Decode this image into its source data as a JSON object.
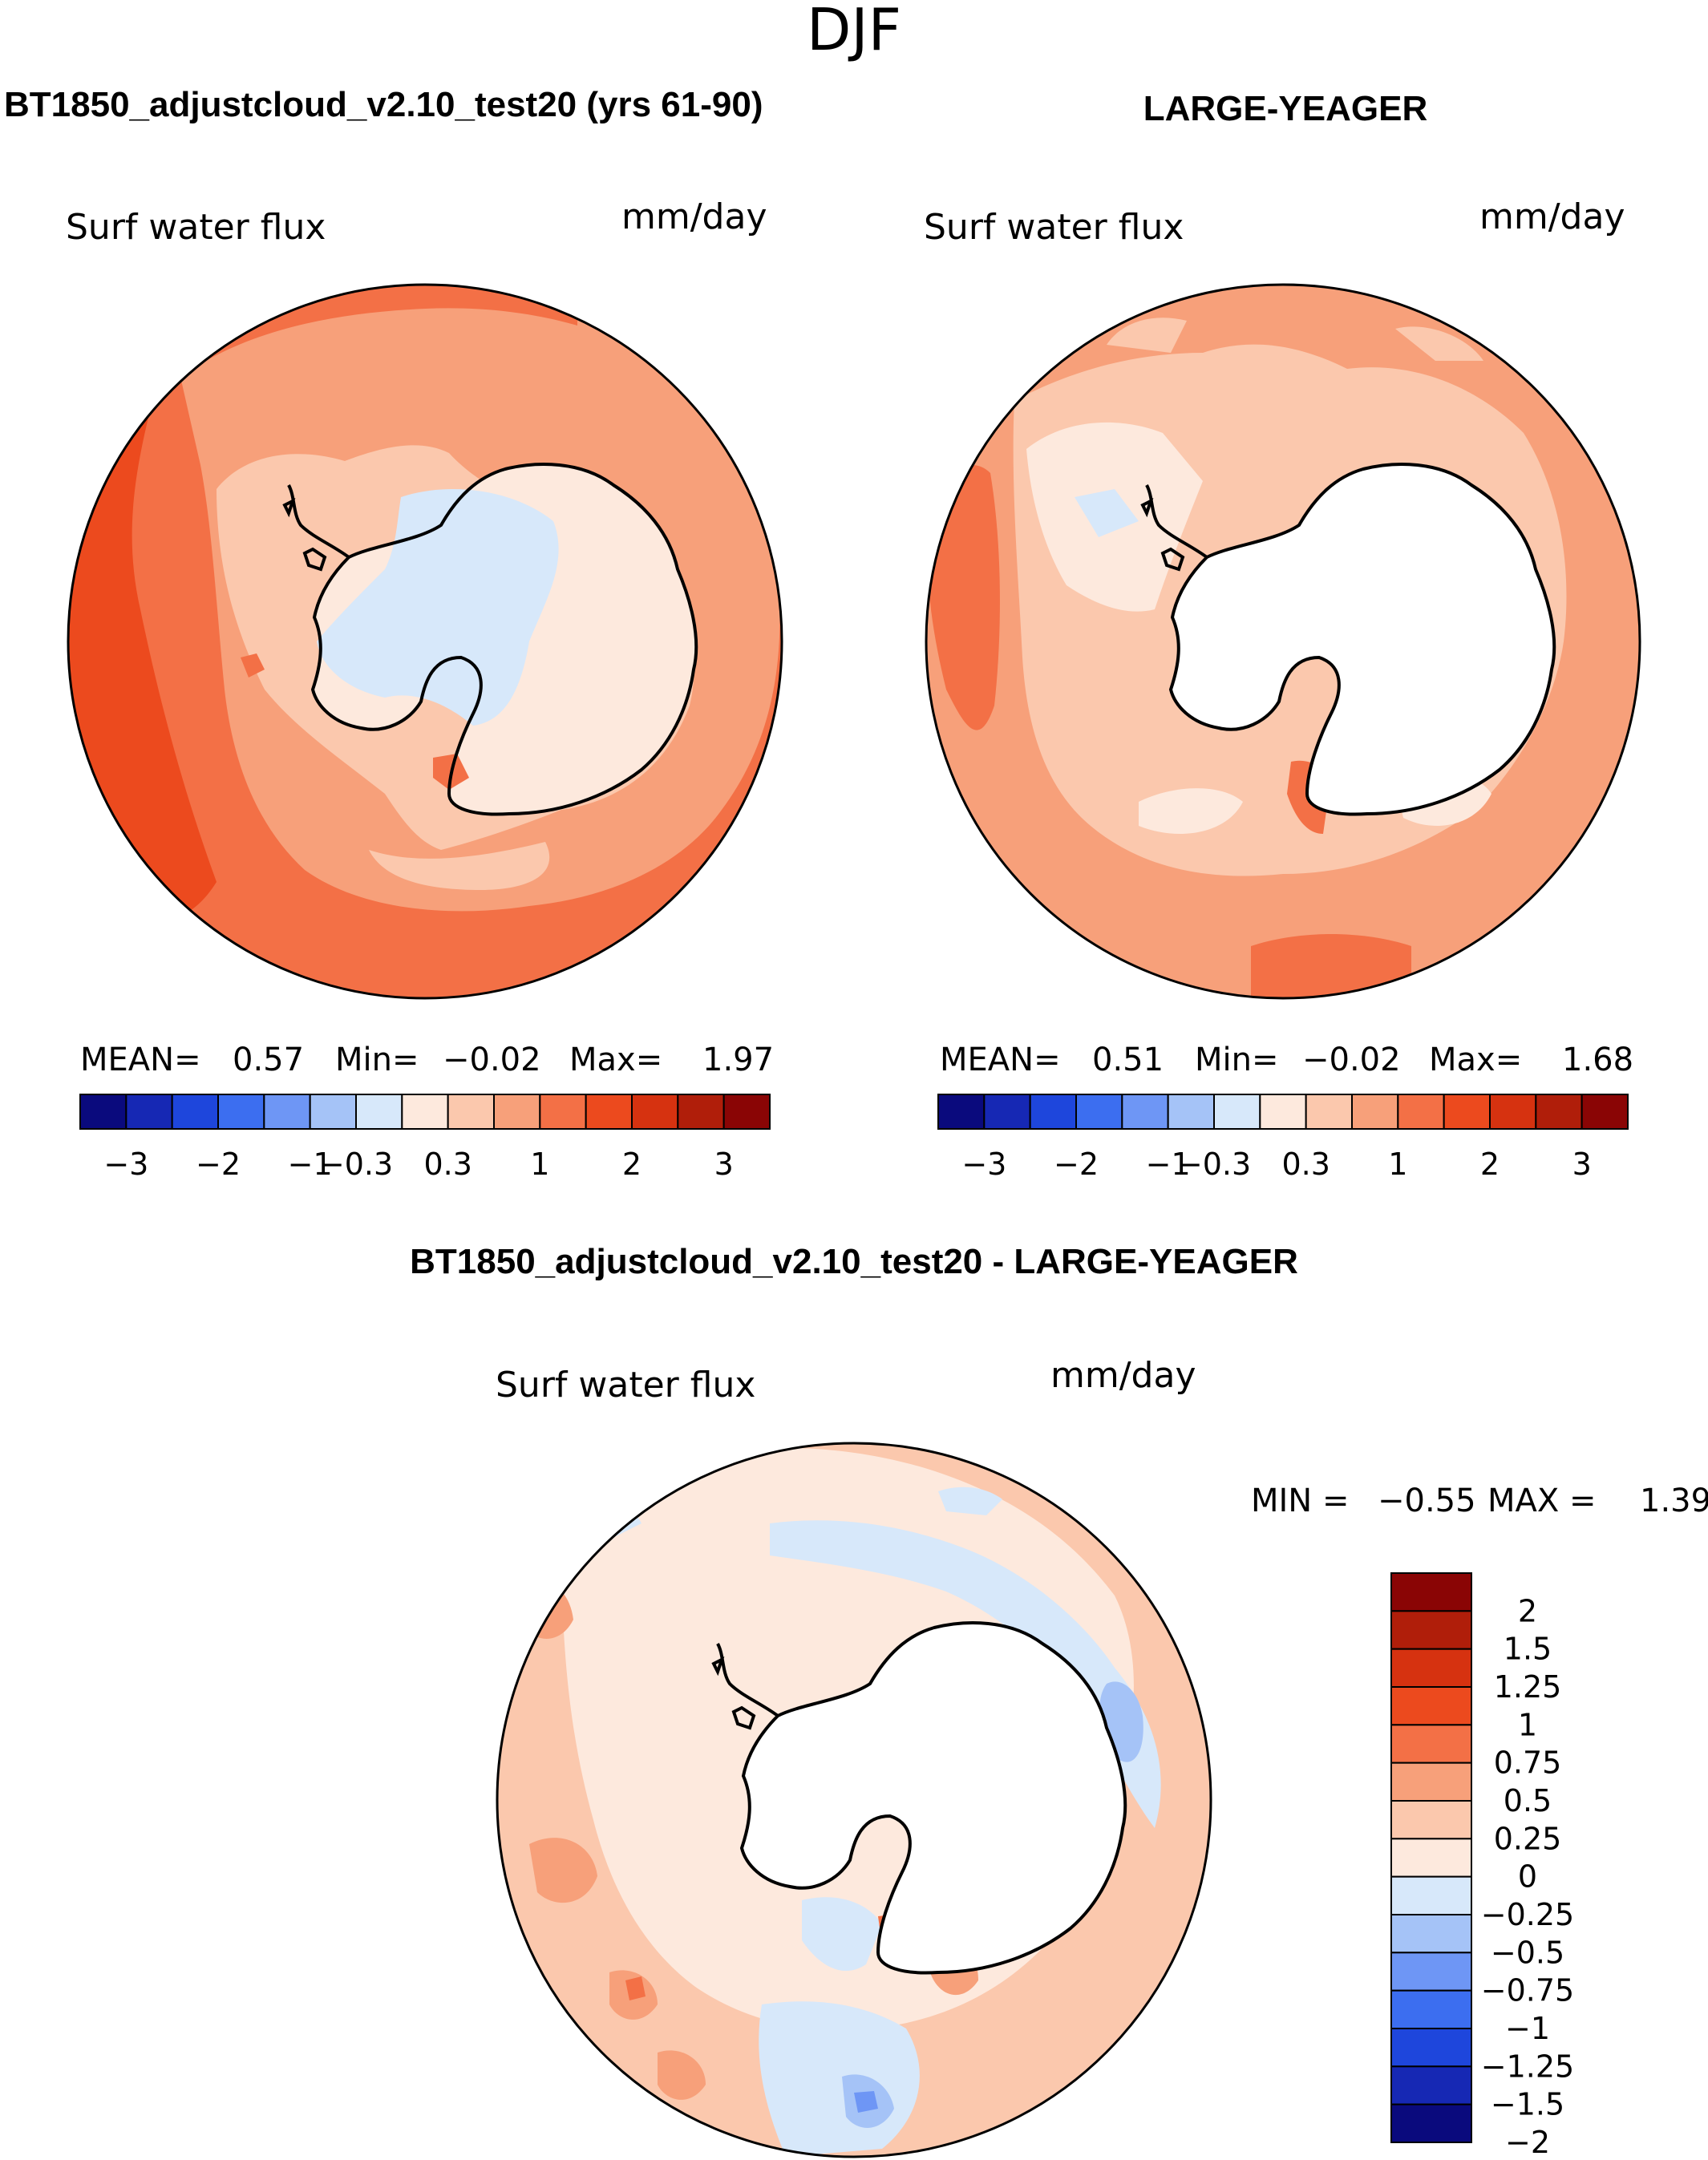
{
  "season": "DJF",
  "panels": [
    {
      "title": "BT1850_adjustcloud_v2.10_test20 (yrs 61-90)",
      "variable": "Surf  water  flux",
      "units": "mm/day",
      "stats": {
        "mean_label": "MEAN=",
        "mean": "0.57",
        "min_label": "Min=",
        "min": "−0.02",
        "max_label": "Max=",
        "max": "1.97"
      }
    },
    {
      "title": "LARGE-YEAGER",
      "variable": "Surf  water  flux",
      "units": "mm/day",
      "stats": {
        "mean_label": "MEAN=",
        "mean": "0.51",
        "min_label": "Min=",
        "min": "−0.02",
        "max_label": "Max=",
        "max": "1.68"
      }
    },
    {
      "title": "BT1850_adjustcloud_v2.10_test20 - LARGE-YEAGER",
      "variable": "Surf  water  flux",
      "units": "mm/day",
      "stats": {
        "min_label": "MIN =",
        "min": "−0.55",
        "max_label": "MAX =",
        "max": "1.39"
      }
    }
  ],
  "colorbar_abs": {
    "colors": [
      "#0a0a7d",
      "#1628b4",
      "#1e46dc",
      "#3c6ef0",
      "#6e96f5",
      "#a5c3f7",
      "#d7e8fa",
      "#fde9dd",
      "#fbc8ad",
      "#f7a07a",
      "#f37046",
      "#ec4a1e",
      "#d63210",
      "#b01e0a",
      "#8a0505"
    ],
    "tick_labels": [
      "−3",
      "−2",
      "−1",
      "−0.3",
      "0.3",
      "1",
      "2",
      "3"
    ]
  },
  "colorbar_diff": {
    "colors": [
      "#0a0a7d",
      "#1628b4",
      "#1e46dc",
      "#3c6ef0",
      "#6e96f5",
      "#a5c3f7",
      "#d7e8fa",
      "#fde9dd",
      "#fbc8ad",
      "#f7a07a",
      "#f37046",
      "#ec4a1e",
      "#d63210",
      "#b01e0a",
      "#8a0505"
    ],
    "tick_labels": [
      "2",
      "1.5",
      "1.25",
      "1",
      "0.75",
      "0.5",
      "0.25",
      "0",
      "−0.25",
      "−0.5",
      "−0.75",
      "−1",
      "−1.25",
      "−1.5",
      "−2"
    ]
  },
  "colors": {
    "land": "#ffffff",
    "coastline": "#000000",
    "cream": "#fde9dd",
    "light_orange": "#fbc8ad",
    "orange": "#f7a07a",
    "dark_orange": "#f37046",
    "red_orange": "#ec4a1e",
    "light_blue": "#d7e8fa",
    "blue": "#a5c3f7",
    "mid_blue": "#6e96f5"
  }
}
